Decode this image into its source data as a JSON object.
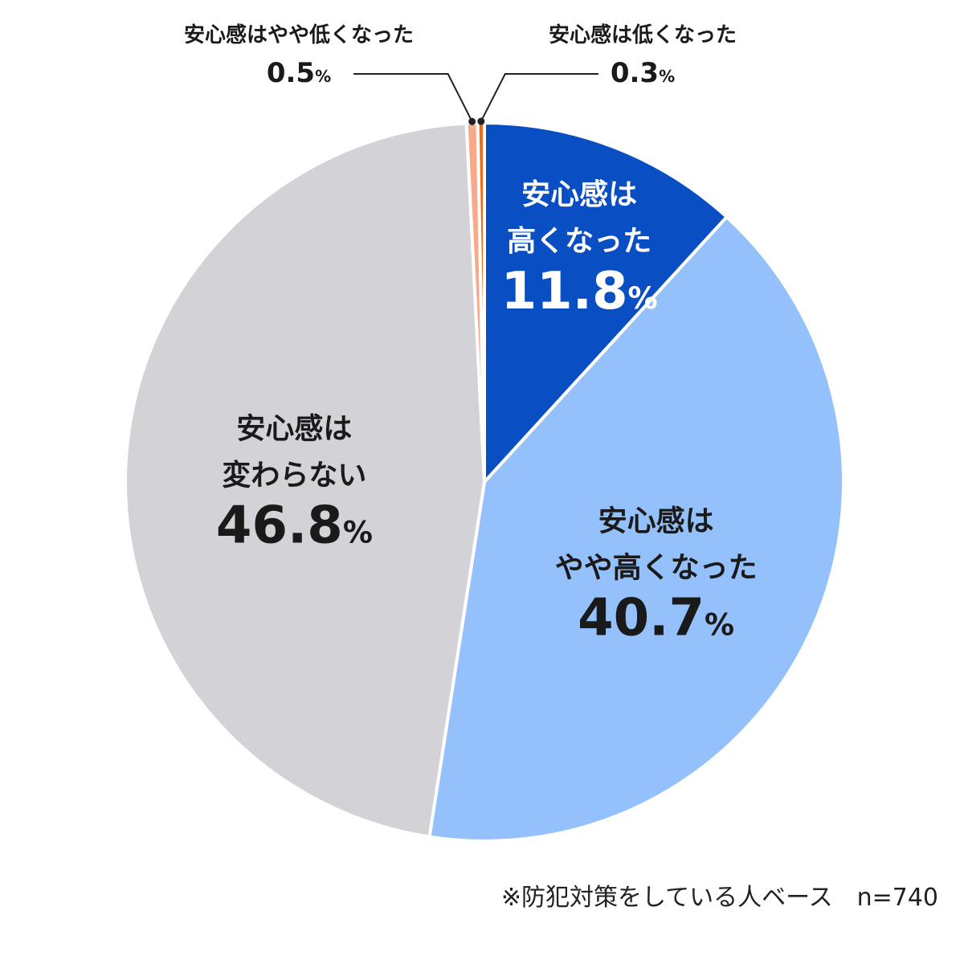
{
  "chart_data": {
    "type": "pie",
    "start_angle_deg": 0,
    "direction": "clockwise",
    "slices": [
      {
        "label_lines": [
          "安心感は",
          "高くなった"
        ],
        "value": 11.8,
        "value_text": "11.8",
        "color": "#0a4ec4",
        "text_color": "#ffffff"
      },
      {
        "label_lines": [
          "安心感は",
          "やや高くなった"
        ],
        "value": 40.7,
        "value_text": "40.7",
        "color": "#94c1fb",
        "text_color": "#1a1a1a"
      },
      {
        "label_lines": [
          "安心感は",
          "変わらない"
        ],
        "value": 46.8,
        "value_text": "46.8",
        "color": "#d3d2d6",
        "text_color": "#1a1a1a"
      },
      {
        "label_lines": [
          "安心感はやや低くなった"
        ],
        "value": 0.5,
        "value_text": "0.5",
        "color": "#f7a98a",
        "text_color": "#1a1a1a"
      },
      {
        "label_lines": [
          "安心感は低くなった"
        ],
        "value": 0.3,
        "value_text": "0.3",
        "color": "#f26a1b",
        "text_color": "#1a1a1a"
      }
    ],
    "unit": "%",
    "note": "※防犯対策をしている人ベース　n=740"
  }
}
